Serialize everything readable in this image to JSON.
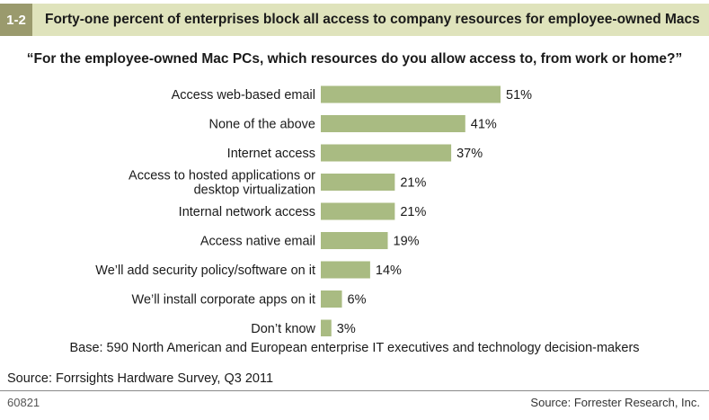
{
  "figure": {
    "number": "1-2",
    "title": "Forty-one percent of enterprises block all access to company resources for employee-owned Macs",
    "question": "“For the employee-owned Mac PCs, which resources do you allow access to, from work or home?”",
    "base_note": "Base: 590 North American and European enterprise IT executives and technology decision-makers",
    "source": "Source: Forrsights Hardware Survey, Q3 2011",
    "figure_id": "60821",
    "credit": "Source: Forrester Research, Inc."
  },
  "colors": {
    "bar": "#a9bb82",
    "header_band": "#dfe3bc",
    "number_box": "#9a9a6d"
  },
  "chart_data": {
    "type": "bar",
    "orientation": "horizontal",
    "title": "“For the employee-owned Mac PCs, which resources do you allow access to, from work or home?”",
    "categories": [
      [
        "Access web-based email"
      ],
      [
        "None of the above"
      ],
      [
        "Internet access"
      ],
      [
        "Access to hosted applications or",
        "desktop virtualization"
      ],
      [
        "Internal network access"
      ],
      [
        "Access native email"
      ],
      [
        "We’ll add security policy/software on it"
      ],
      [
        "We’ll install corporate apps on it"
      ],
      [
        "Don’t know"
      ]
    ],
    "values": [
      51,
      41,
      37,
      21,
      21,
      19,
      14,
      6,
      3
    ],
    "value_labels": [
      "51%",
      "41%",
      "37%",
      "21%",
      "21%",
      "19%",
      "14%",
      "6%",
      "3%"
    ],
    "unit": "%",
    "xlim": [
      0,
      51
    ],
    "grid": false,
    "xlabel": "",
    "ylabel": ""
  }
}
